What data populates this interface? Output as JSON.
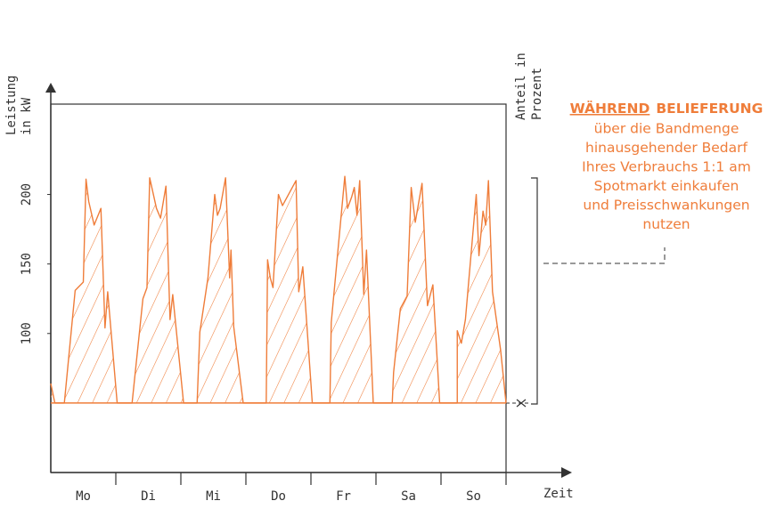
{
  "chart_data": {
    "type": "area",
    "ylabel": [
      "Leistung",
      "in kW"
    ],
    "y2label": [
      "Anteil in",
      "Prozent"
    ],
    "xlabel": "Zeit",
    "categories": [
      "Mo",
      "Di",
      "Mi",
      "Do",
      "Fr",
      "Sa",
      "So"
    ],
    "xlim": [
      0,
      168
    ],
    "ylim": [
      0,
      265
    ],
    "yticks": [
      100,
      150,
      200
    ],
    "baseline": 50,
    "x": [
      0,
      1.5,
      5,
      9,
      12,
      13,
      14,
      16,
      18.5,
      20,
      21,
      24.5,
      30,
      34,
      35.5,
      36.5,
      39,
      40.5,
      42.5,
      44,
      45,
      49,
      53,
      54,
      55,
      58,
      60.5,
      61.5,
      62.5,
      64.5,
      66,
      66.5,
      67.5,
      71,
      77,
      79.5,
      80,
      81,
      82,
      84,
      85.5,
      90.5,
      91.5,
      93,
      96.5,
      101,
      103,
      103.5,
      108.5,
      109.5,
      111,
      112,
      113,
      114,
      115.5,
      116.5,
      119,
      126,
      126.5,
      129,
      131.5,
      133,
      134.5,
      137,
      139,
      141,
      143.5,
      150,
      150,
      151.5,
      153,
      157,
      158,
      159.5,
      160.5,
      161.5,
      163,
      166,
      168
    ],
    "series": [
      {
        "color": "#ef7d3a",
        "values": [
          64,
          50,
          50,
          131,
          137,
          211,
          195,
          178,
          190,
          104,
          130,
          50,
          50,
          125,
          133,
          212,
          190,
          183,
          206,
          110,
          128,
          50,
          50,
          50,
          101,
          140,
          200,
          185,
          190,
          212,
          140,
          160,
          105,
          50,
          50,
          50,
          153,
          140,
          133,
          200,
          192,
          210,
          130,
          148,
          50,
          50,
          50,
          108,
          213,
          190,
          198,
          205,
          185,
          210,
          128,
          160,
          50,
          50,
          72,
          118,
          127,
          205,
          180,
          208,
          120,
          135,
          50,
          50,
          102,
          93,
          110,
          200,
          156,
          188,
          178,
          210,
          130,
          88,
          50
        ]
      }
    ],
    "annotation": {
      "title": [
        "WÄHREND",
        "BELIEFERUNG"
      ],
      "lines": [
        "über die Bandmenge",
        "hinausgehender Bedarf",
        "Ihres Verbrauchs 1:1 am",
        "Spotmarkt einkaufen",
        "und Preisschwankungen",
        "nutzen"
      ]
    }
  }
}
